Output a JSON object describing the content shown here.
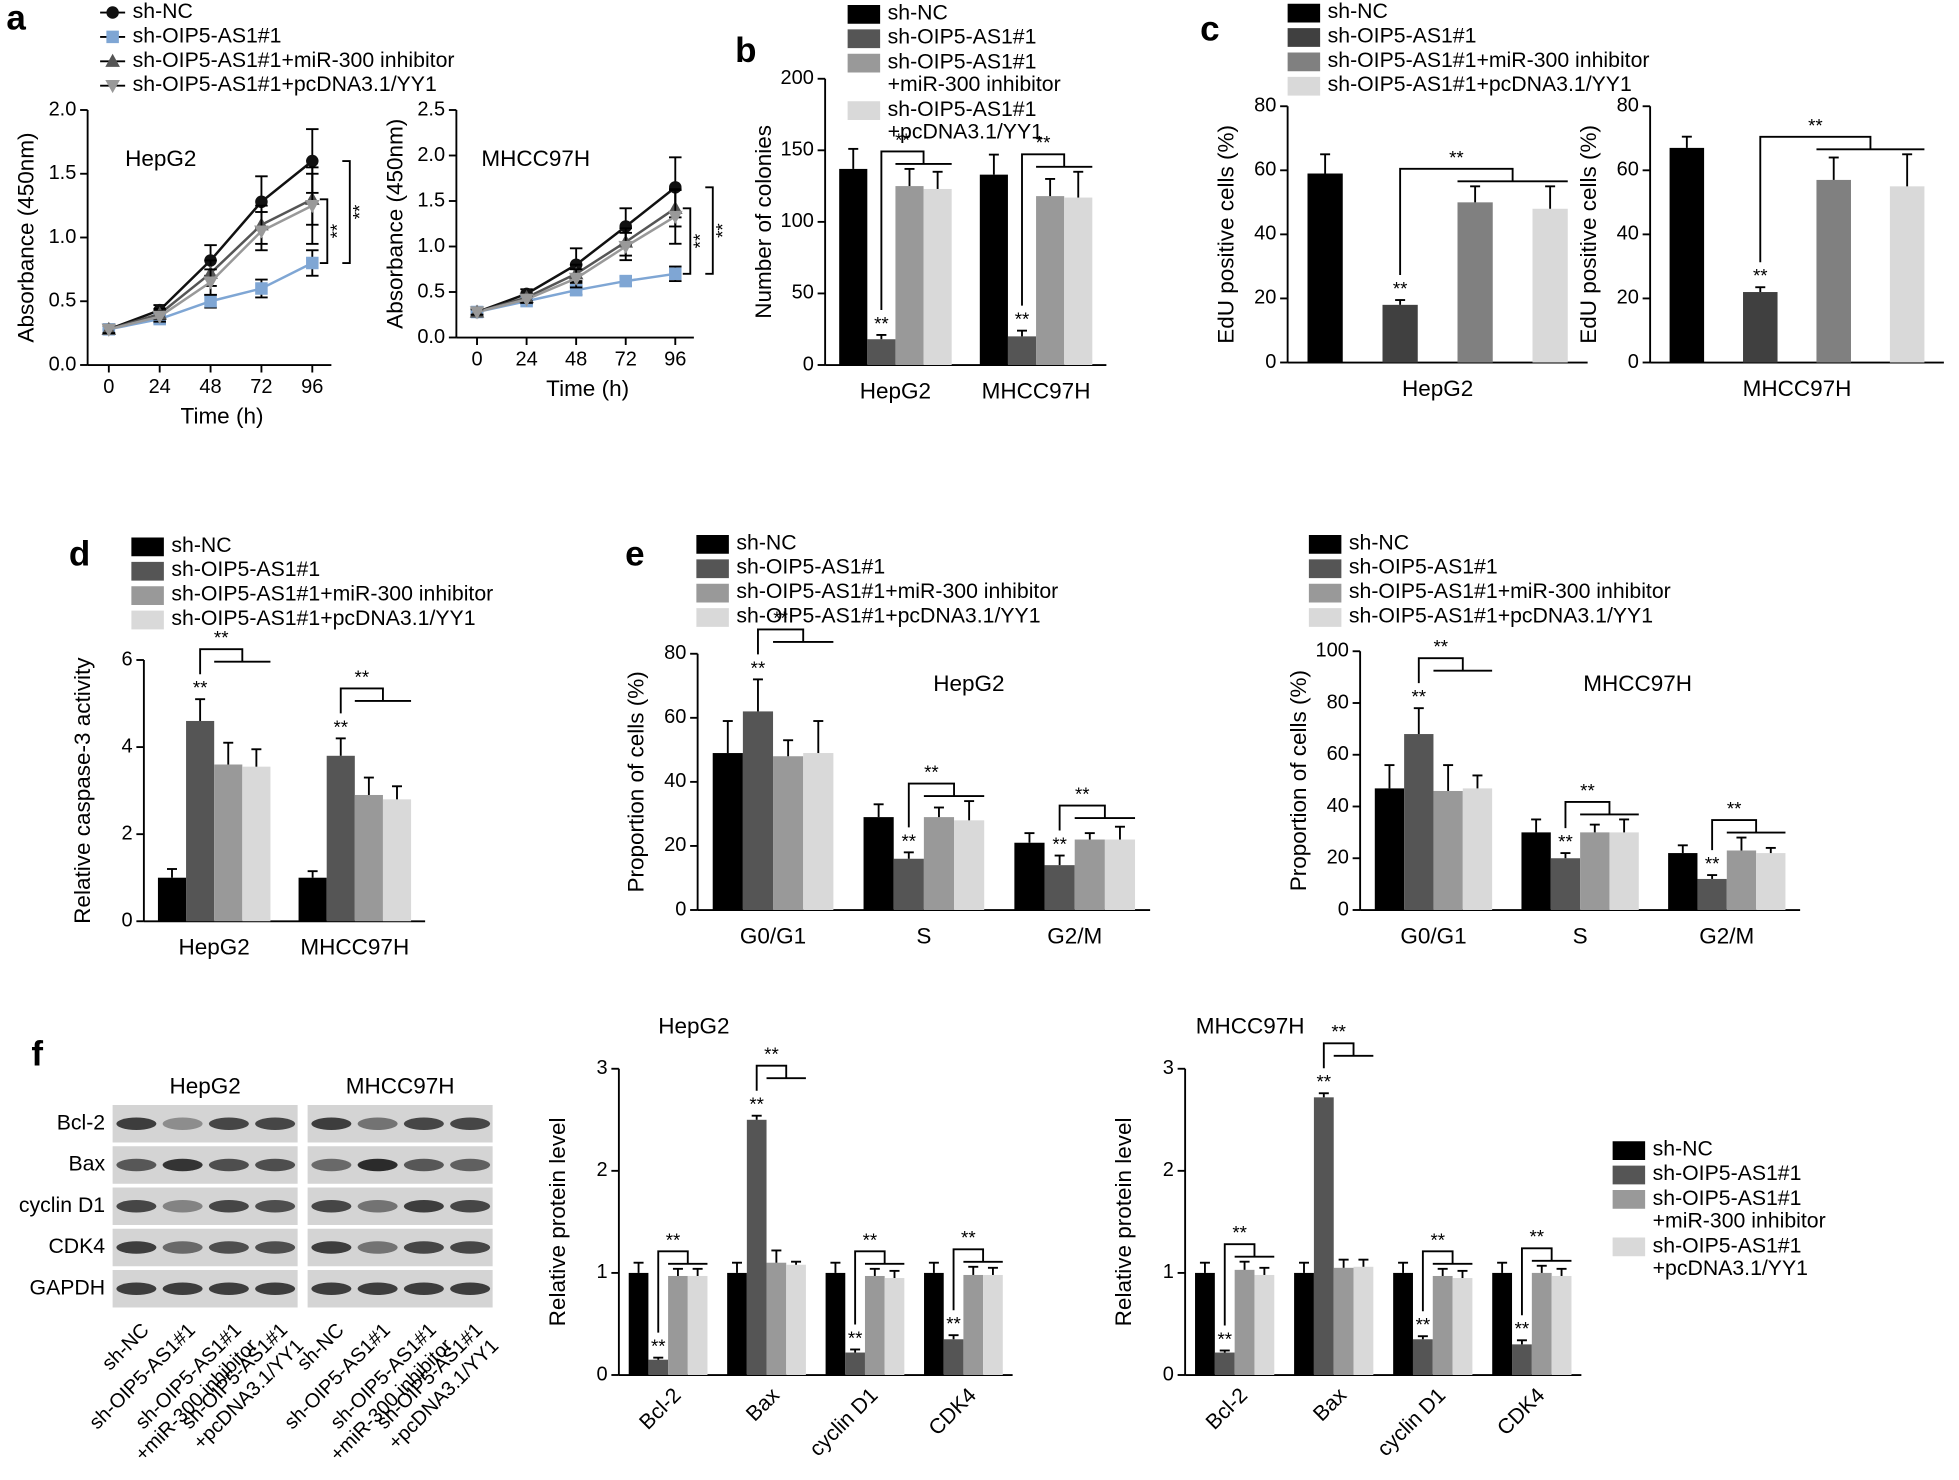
{
  "panels": [
    "a",
    "b",
    "c",
    "d",
    "e",
    "f"
  ],
  "chart_data": [
    {
      "type": "line",
      "annotation": "HepG2",
      "xlabel": "Time (h)",
      "ylabel": "Absorbance (450nm)",
      "x": [
        0,
        24,
        48,
        72,
        96
      ],
      "xlim": [
        -10,
        105
      ],
      "xticks": [
        0,
        24,
        48,
        72,
        96
      ],
      "ylim": [
        0,
        2
      ],
      "yticks": [
        {
          "value": 0,
          "label": "0.0"
        },
        {
          "value": 0.5,
          "label": "0.5"
        },
        {
          "value": 1,
          "label": "1.0"
        },
        {
          "value": 1.5,
          "label": "1.5"
        },
        {
          "value": 2,
          "label": "2.0"
        }
      ],
      "series": [
        {
          "name": "sh-NC",
          "color": "#111111",
          "marker": "circle",
          "values": [
            0.28,
            0.43,
            0.82,
            1.28,
            1.6
          ],
          "errors": [
            0.03,
            0.04,
            0.12,
            0.2,
            0.25
          ]
        },
        {
          "name": "sh-OIP5-AS1#1",
          "color": "#7fa6d4",
          "marker": "square",
          "values": [
            0.28,
            0.36,
            0.5,
            0.6,
            0.8
          ],
          "errors": [
            0.03,
            0.03,
            0.05,
            0.07,
            0.1
          ]
        },
        {
          "name": "sh-OIP5-AS1#1+miR-300 inhibitor",
          "color": "#555555",
          "marker": "triangle",
          "values": [
            0.28,
            0.4,
            0.72,
            1.1,
            1.3
          ],
          "errors": [
            0.03,
            0.04,
            0.1,
            0.15,
            0.2
          ]
        },
        {
          "name": "sh-OIP5-AS1#1+pcDNA3.1/YY1",
          "color": "#999999",
          "marker": "triangle-down",
          "values": [
            0.28,
            0.38,
            0.65,
            1.05,
            1.25
          ],
          "errors": [
            0.03,
            0.04,
            0.1,
            0.15,
            0.3
          ]
        }
      ],
      "annotations": [
        "**",
        "**"
      ]
    },
    {
      "type": "line",
      "annotation": "MHCC97H",
      "xlabel": "Time (h)",
      "ylabel": "Absorbance (450nm)",
      "x": [
        0,
        24,
        48,
        72,
        96
      ],
      "xlim": [
        -10,
        105
      ],
      "xticks": [
        0,
        24,
        48,
        72,
        96
      ],
      "ylim": [
        0,
        2.5
      ],
      "yticks": [
        {
          "value": 0,
          "label": "0.0"
        },
        {
          "value": 0.5,
          "label": "0.5"
        },
        {
          "value": 1,
          "label": "1.0"
        },
        {
          "value": 1.5,
          "label": "1.5"
        },
        {
          "value": 2,
          "label": "2.0"
        },
        {
          "value": 2.5,
          "label": "2.5"
        }
      ],
      "series": [
        {
          "color": "#111111",
          "marker": "circle",
          "values": [
            0.28,
            0.48,
            0.8,
            1.22,
            1.65
          ],
          "errors": [
            0.03,
            0.05,
            0.18,
            0.2,
            0.33
          ]
        },
        {
          "color": "#7fa6d4",
          "marker": "square",
          "values": [
            0.28,
            0.4,
            0.52,
            0.62,
            0.7
          ],
          "errors": [
            0.03,
            0.03,
            0.05,
            0.05,
            0.08
          ]
        },
        {
          "color": "#555555",
          "marker": "triangle",
          "values": [
            0.28,
            0.44,
            0.7,
            1.05,
            1.42
          ],
          "errors": [
            0.03,
            0.04,
            0.1,
            0.15,
            0.2
          ]
        },
        {
          "color": "#999999",
          "marker": "triangle-down",
          "values": [
            0.28,
            0.42,
            0.65,
            1.0,
            1.33
          ],
          "errors": [
            0.03,
            0.04,
            0.1,
            0.15,
            0.3
          ]
        }
      ],
      "annotations": [
        "**",
        "**"
      ]
    },
    {
      "type": "bar",
      "ylabel": "Number of colonies",
      "categories": [
        "HepG2",
        "MHCC97H"
      ],
      "ylim": [
        0,
        200
      ],
      "yticks": [
        0,
        50,
        100,
        150,
        200
      ],
      "series": [
        {
          "name": "sh-NC",
          "color": "#000000",
          "values": [
            137,
            133
          ],
          "errors": [
            14,
            14
          ]
        },
        {
          "name": "sh-OIP5-AS1#1",
          "color": "#555555",
          "values": [
            18,
            20
          ],
          "errors": [
            3,
            4
          ]
        },
        {
          "name": "sh-OIP5-AS1#1\n+miR-300 inhibitor",
          "color": "#999999",
          "values": [
            125,
            118
          ],
          "errors": [
            12,
            12
          ]
        },
        {
          "name": "sh-OIP5-AS1#1\n+pcDNA3.1/YY1",
          "color": "#d9d9d9",
          "values": [
            123,
            117
          ],
          "errors": [
            12,
            18
          ]
        }
      ],
      "annotations": [
        "**",
        "**",
        "**",
        "**"
      ]
    },
    {
      "type": "bar",
      "ylabel": "EdU positive cells (%)",
      "categories": [
        "HepG2"
      ],
      "ylim": [
        0,
        80
      ],
      "yticks": [
        0,
        20,
        40,
        60,
        80
      ],
      "series": [
        {
          "name": "sh-NC",
          "color": "#000000",
          "values": [
            59
          ],
          "errors": [
            6
          ]
        },
        {
          "name": "sh-OIP5-AS1#1",
          "color": "#404040",
          "values": [
            18
          ],
          "errors": [
            1.5
          ]
        },
        {
          "name": "sh-OIP5-AS1#1+miR-300 inhibitor",
          "color": "#808080",
          "values": [
            50
          ],
          "errors": [
            5
          ]
        },
        {
          "name": "sh-OIP5-AS1#1+pcDNA3.1/YY1",
          "color": "#d9d9d9",
          "values": [
            48
          ],
          "errors": [
            7
          ]
        }
      ],
      "annotations": [
        "**",
        "**"
      ]
    },
    {
      "type": "bar",
      "ylabel": "EdU positive cells (%)",
      "categories": [
        "MHCC97H"
      ],
      "ylim": [
        0,
        80
      ],
      "yticks": [
        0,
        20,
        40,
        60,
        80
      ],
      "series": [
        {
          "color": "#000000",
          "values": [
            67
          ],
          "errors": [
            3.5
          ]
        },
        {
          "color": "#404040",
          "values": [
            22
          ],
          "errors": [
            1.5
          ]
        },
        {
          "color": "#808080",
          "values": [
            57
          ],
          "errors": [
            7
          ]
        },
        {
          "color": "#d9d9d9",
          "values": [
            55
          ],
          "errors": [
            10
          ]
        }
      ],
      "annotations": [
        "**",
        "**"
      ]
    },
    {
      "type": "bar",
      "ylabel": "Relative caspase-3 activity",
      "categories": [
        "HepG2",
        "MHCC97H"
      ],
      "ylim": [
        0,
        6
      ],
      "yticks": [
        0,
        2,
        4,
        6
      ],
      "series": [
        {
          "name": "sh-NC",
          "color": "#000000",
          "values": [
            1,
            1
          ],
          "errors": [
            0.2,
            0.15
          ]
        },
        {
          "name": "sh-OIP5-AS1#1",
          "color": "#555555",
          "values": [
            4.6,
            3.8
          ],
          "errors": [
            0.5,
            0.4
          ]
        },
        {
          "name": "sh-OIP5-AS1#1+miR-300 inhibitor",
          "color": "#999999",
          "values": [
            3.6,
            2.9
          ],
          "errors": [
            0.5,
            0.4
          ]
        },
        {
          "name": "sh-OIP5-AS1#1+pcDNA3.1/YY1",
          "color": "#d9d9d9",
          "values": [
            3.55,
            2.8
          ],
          "errors": [
            0.4,
            0.3
          ]
        }
      ],
      "annotations": [
        "**",
        "**",
        "**",
        "**"
      ]
    },
    {
      "type": "bar",
      "title": "HepG2",
      "ylabel": "Proportion of cells (%)",
      "categories": [
        "G0/G1",
        "S",
        "G2/M"
      ],
      "ylim": [
        0,
        80
      ],
      "yticks": [
        0,
        20,
        40,
        60,
        80
      ],
      "series": [
        {
          "name": "sh-NC",
          "color": "#000000",
          "values": [
            49,
            29,
            21
          ],
          "errors": [
            10,
            4,
            3
          ]
        },
        {
          "name": "sh-OIP5-AS1#1",
          "color": "#555555",
          "values": [
            62,
            16,
            14
          ],
          "errors": [
            10,
            2,
            3
          ]
        },
        {
          "name": "sh-OIP5-AS1#1+miR-300 inhibitor",
          "color": "#999999",
          "values": [
            48,
            29,
            22
          ],
          "errors": [
            5,
            3,
            2
          ]
        },
        {
          "name": "sh-OIP5-AS1#1+pcDNA3.1/YY1",
          "color": "#d9d9d9",
          "values": [
            49,
            28,
            22
          ],
          "errors": [
            10,
            6,
            4
          ]
        }
      ],
      "annotations": [
        "**",
        "**",
        "**",
        "**",
        "**",
        "**"
      ]
    },
    {
      "type": "bar",
      "title": "MHCC97H",
      "ylabel": "Proportion of cells (%)",
      "categories": [
        "G0/G1",
        "S",
        "G2/M"
      ],
      "ylim": [
        0,
        100
      ],
      "yticks": [
        0,
        20,
        40,
        60,
        80,
        100
      ],
      "series": [
        {
          "name": "sh-NC",
          "color": "#000000",
          "values": [
            47,
            30,
            22
          ],
          "errors": [
            9,
            5,
            3
          ]
        },
        {
          "name": "sh-OIP5-AS1#1",
          "color": "#555555",
          "values": [
            68,
            20,
            12
          ],
          "errors": [
            10,
            2,
            1.5
          ]
        },
        {
          "name": "sh-OIP5-AS1#1+miR-300 inhibitor",
          "color": "#999999",
          "values": [
            46,
            30,
            23
          ],
          "errors": [
            10,
            3,
            5
          ]
        },
        {
          "name": "sh-OIP5-AS1#1+pcDNA3.1/YY1",
          "color": "#d9d9d9",
          "values": [
            47,
            30,
            22
          ],
          "errors": [
            5,
            5,
            2
          ]
        }
      ],
      "annotations": [
        "**",
        "**",
        "**",
        "**",
        "**",
        "**"
      ]
    },
    {
      "type": "bar",
      "title": "HepG2",
      "ylabel": "Relative protein level",
      "categories": [
        "Bcl-2",
        "Bax",
        "cyclin D1",
        "CDK4"
      ],
      "ylim": [
        0,
        3
      ],
      "yticks": [
        0,
        1,
        2,
        3
      ],
      "series": [
        {
          "color": "#000000",
          "values": [
            1,
            1,
            1,
            1
          ],
          "errors": [
            0.1,
            0.1,
            0.1,
            0.1
          ]
        },
        {
          "color": "#555555",
          "values": [
            0.15,
            2.5,
            0.22,
            0.35
          ],
          "errors": [
            0.02,
            0.04,
            0.03,
            0.04
          ]
        },
        {
          "color": "#999999",
          "values": [
            0.97,
            1.1,
            0.97,
            0.98
          ],
          "errors": [
            0.07,
            0.12,
            0.07,
            0.08
          ]
        },
        {
          "color": "#d9d9d9",
          "values": [
            0.97,
            1.08,
            0.95,
            0.98
          ],
          "errors": [
            0.07,
            0.03,
            0.07,
            0.07
          ]
        }
      ],
      "annotations": [
        "**",
        "**",
        "**",
        "**",
        "**",
        "**",
        "**",
        "**"
      ]
    },
    {
      "type": "bar",
      "title": "MHCC97H",
      "ylabel": "Relative protein level",
      "categories": [
        "Bcl-2",
        "Bax",
        "cyclin D1",
        "CDK4"
      ],
      "ylim": [
        0,
        3
      ],
      "yticks": [
        0,
        1,
        2,
        3
      ],
      "series": [
        {
          "name": "sh-NC",
          "color": "#000000",
          "values": [
            1,
            1,
            1,
            1
          ],
          "errors": [
            0.1,
            0.1,
            0.1,
            0.1
          ]
        },
        {
          "name": "sh-OIP5-AS1#1",
          "color": "#555555",
          "values": [
            0.22,
            2.72,
            0.35,
            0.3
          ],
          "errors": [
            0.02,
            0.04,
            0.03,
            0.04
          ]
        },
        {
          "name": "sh-OIP5-AS1#1\n+miR-300 inhibitor",
          "color": "#999999",
          "values": [
            1.03,
            1.05,
            0.97,
            1.0
          ],
          "errors": [
            0.08,
            0.08,
            0.07,
            0.07
          ]
        },
        {
          "name": "sh-OIP5-AS1#1\n+pcDNA3.1/YY1",
          "color": "#d9d9d9",
          "values": [
            0.98,
            1.06,
            0.95,
            0.97
          ],
          "errors": [
            0.07,
            0.07,
            0.07,
            0.07
          ]
        }
      ],
      "annotations": [
        "**",
        "**",
        "**",
        "**",
        "**",
        "**",
        "**",
        "**"
      ]
    }
  ],
  "blot": {
    "columns": [
      "HepG2",
      "MHCC97H"
    ],
    "rows": [
      "Bcl-2",
      "Bax",
      "cyclin D1",
      "CDK4",
      "GAPDH"
    ],
    "lanes": [
      "sh-NC",
      "sh-OIP5-AS1#1",
      "sh-OIP5-AS1#1\n+miR-300 inhibitor",
      "sh-OIP5-AS1#1\n+pcDNA3.1/YY1"
    ]
  }
}
